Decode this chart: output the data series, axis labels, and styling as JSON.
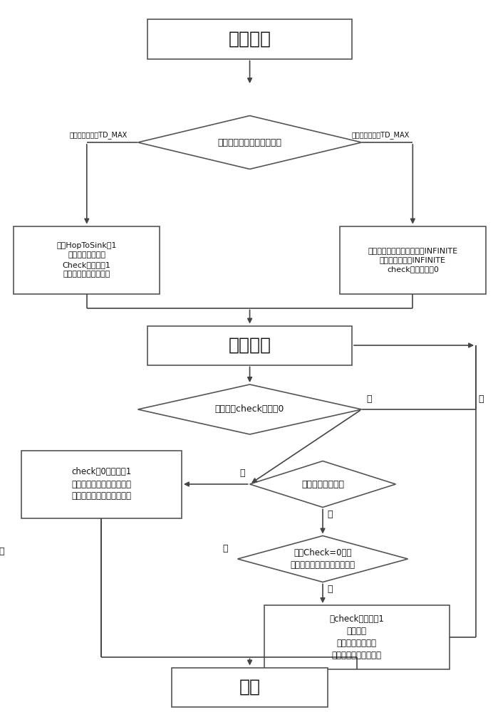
{
  "bg_color": "#ffffff",
  "box_color": "#ffffff",
  "box_edge": "#555555",
  "diamond_color": "#ffffff",
  "diamond_edge": "#555555",
  "arrow_color": "#444444",
  "text_color": "#111111",
  "prepare_text": "准备阶段",
  "diamond1_text": "簇头检查自己到基站的距离",
  "box_left_text": "设置HopToSink为1\n计算到基站的能量\nCheck标志置为1\n发送一次路由形成消息",
  "box_right_text": "簇头将到基站的跳数设置为INFINITE\n到基站的能量为INFINITE\ncheck标志位设为0",
  "label_left": "到基站距离小于TD_MAX",
  "label_right": "到基站距离大于TD_MAX",
  "route_start_text": "路由开始",
  "diamond2_text": "存在簇头check标志为0",
  "label_yes1": "是",
  "label_no1": "否",
  "diamond3_text": "路由时间戳已结束",
  "label_yes2": "是",
  "label_no2": "否",
  "box_action1_text": "check为0的簇头置1\n如果簇头没有收到任何消息\n那么该簇头直接与基站通信",
  "diamond4_text": "如果Check=0并且\n收到来自所有上级列表的消息",
  "label_yes3": "是",
  "label_no3": "否",
  "box_action2_text": "置check标志位为1\n更新跳数\n计算到基站的能量\n发送一次路由形成消息",
  "end_text": "结束"
}
